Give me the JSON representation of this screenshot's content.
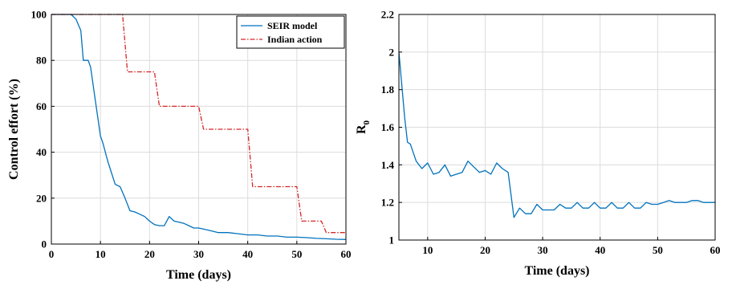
{
  "chart_data": [
    {
      "type": "line",
      "xlabel": "Time (days)",
      "ylabel": "Control effort (%)",
      "xlim": [
        0,
        60
      ],
      "ylim": [
        0,
        100
      ],
      "xticks": [
        0,
        10,
        20,
        30,
        40,
        50,
        60
      ],
      "yticks": [
        0,
        20,
        40,
        60,
        80,
        100
      ],
      "grid": true,
      "legend": "top-right",
      "series": [
        {
          "name": "SEIR model",
          "color": "#0072BD",
          "style": "solid",
          "x": [
            0,
            4,
            5,
            6,
            6.5,
            7.5,
            8,
            9,
            10,
            10.5,
            11.5,
            13,
            14,
            15,
            16,
            17,
            18,
            19,
            20,
            21,
            22,
            23,
            24,
            25,
            26,
            27,
            28,
            29,
            30,
            31,
            32,
            33,
            34,
            35,
            36,
            38,
            40,
            42,
            44,
            46,
            48,
            50,
            52,
            54,
            56,
            58,
            60
          ],
          "y": [
            100,
            100,
            98,
            93,
            80,
            80,
            77,
            62,
            47,
            44,
            36,
            26,
            25,
            20,
            14.5,
            14,
            13,
            12,
            10,
            8.5,
            8,
            8,
            12,
            10,
            9.5,
            9,
            8,
            7,
            7,
            6.5,
            6,
            5.5,
            5,
            5,
            5,
            4.5,
            4,
            4,
            3.5,
            3.5,
            3,
            3,
            2.8,
            2.5,
            2.3,
            2.1,
            2
          ]
        },
        {
          "name": "Indian action",
          "color": "#D62728",
          "style": "dashdot",
          "x": [
            0,
            14.5,
            15.5,
            21,
            22,
            30,
            31,
            40,
            41,
            50,
            51,
            55,
            56,
            60
          ],
          "y": [
            100,
            100,
            75,
            75,
            60,
            60,
            50,
            50,
            25,
            25,
            10,
            10,
            5,
            5
          ]
        }
      ]
    },
    {
      "type": "line",
      "xlabel": "Time (days)",
      "ylabel": "R",
      "ylabel_sub": "0",
      "xlim": [
        5,
        60
      ],
      "ylim": [
        1,
        2.2
      ],
      "xticks": [
        10,
        20,
        30,
        40,
        50,
        60
      ],
      "yticks": [
        1,
        1.2,
        1.4,
        1.6,
        1.8,
        2,
        2.2
      ],
      "grid": true,
      "series": [
        {
          "color": "#0072BD",
          "style": "solid",
          "x": [
            5,
            6,
            6.5,
            7,
            8,
            9,
            10,
            11,
            12,
            13,
            14,
            15,
            16,
            17,
            18,
            19,
            20,
            21,
            22,
            23,
            24,
            25,
            26,
            27,
            28,
            29,
            30,
            31,
            32,
            33,
            34,
            35,
            36,
            37,
            38,
            39,
            40,
            41,
            42,
            43,
            44,
            45,
            46,
            47,
            48,
            49,
            50,
            51,
            52,
            53,
            54,
            55,
            56,
            57,
            58,
            59,
            60
          ],
          "y": [
            2,
            1.65,
            1.52,
            1.51,
            1.42,
            1.38,
            1.41,
            1.35,
            1.36,
            1.4,
            1.34,
            1.35,
            1.36,
            1.42,
            1.39,
            1.36,
            1.37,
            1.35,
            1.41,
            1.38,
            1.36,
            1.12,
            1.17,
            1.14,
            1.14,
            1.19,
            1.16,
            1.16,
            1.16,
            1.19,
            1.17,
            1.17,
            1.2,
            1.17,
            1.17,
            1.2,
            1.17,
            1.17,
            1.2,
            1.17,
            1.17,
            1.2,
            1.17,
            1.17,
            1.2,
            1.19,
            1.19,
            1.2,
            1.21,
            1.2,
            1.2,
            1.2,
            1.21,
            1.21,
            1.2,
            1.2,
            1.2
          ]
        }
      ]
    }
  ]
}
